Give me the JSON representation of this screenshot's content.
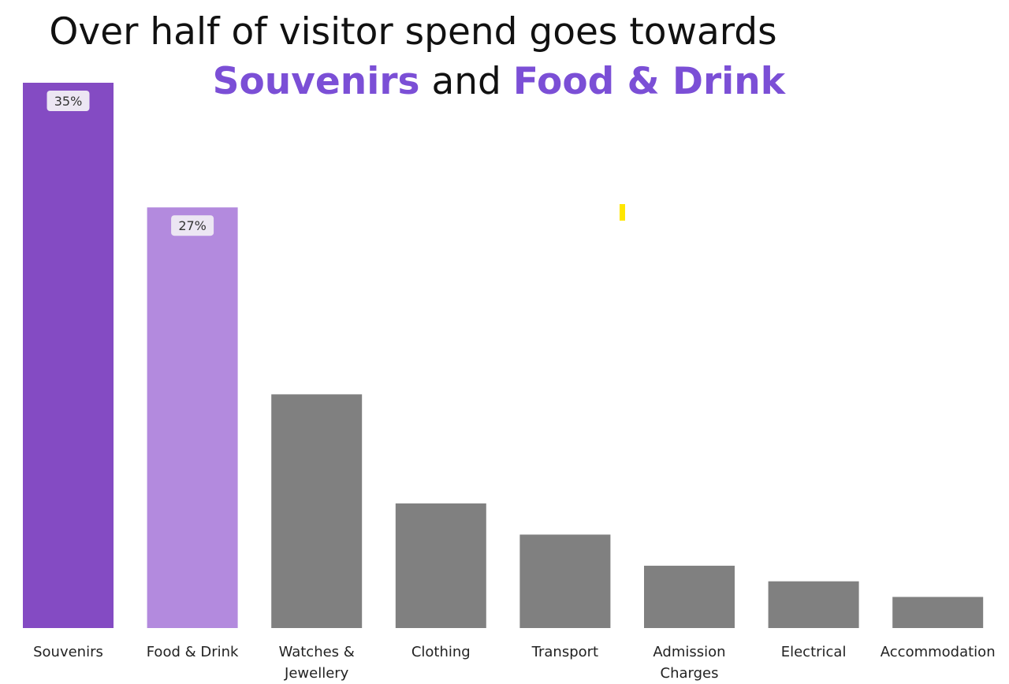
{
  "title": {
    "line1": "Over half of visitor spend goes towards",
    "highlight1": "Souvenirs",
    "connector": "and",
    "highlight2": "Food & Drink"
  },
  "colors": {
    "highlight_primary": "#844bc3",
    "highlight_secondary": "#b38ade",
    "other": "#808080",
    "title_accent": "#7b4fd6",
    "label_box": "#ece6f3",
    "marker": "#ffe600"
  },
  "chart_data": {
    "type": "bar",
    "categories": [
      "Souvenirs",
      "Food & Drink",
      "Watches & Jewellery",
      "Clothing",
      "Transport",
      "Admission Charges",
      "Electrical",
      "Accommodation"
    ],
    "category_lines": [
      [
        "Souvenirs"
      ],
      [
        "Food & Drink"
      ],
      [
        "Watches &",
        "Jewellery"
      ],
      [
        "Clothing"
      ],
      [
        "Transport"
      ],
      [
        "Admission",
        "Charges"
      ],
      [
        "Electrical"
      ],
      [
        "Accommodation"
      ]
    ],
    "values": [
      35,
      27,
      15,
      8,
      6,
      4,
      3,
      2
    ],
    "data_labels": [
      "35%",
      "27%",
      "",
      "",
      "",
      "",
      "",
      ""
    ],
    "highlight": [
      "primary",
      "secondary",
      "other",
      "other",
      "other",
      "other",
      "other",
      "other"
    ],
    "ylim": [
      0,
      35
    ],
    "grid": false,
    "legend": "none"
  }
}
